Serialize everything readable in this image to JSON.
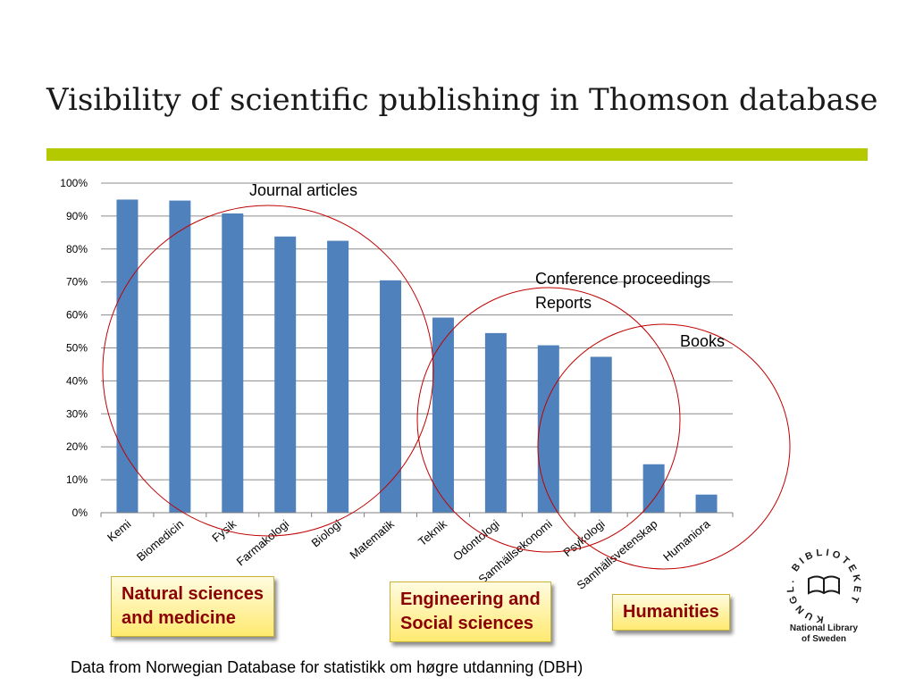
{
  "slide": {
    "title": "Visibility of scientific publishing in Thomson database",
    "accent_color": "#b5c900",
    "footer": "Data from Norwegian Database for statistikk om høgre utdanning (DBH)"
  },
  "chart_data": {
    "type": "bar",
    "categories": [
      "Kemi",
      "Biomedicin",
      "Fysik",
      "Farmakologi",
      "Biologi",
      "Matematik",
      "Teknik",
      "Odontologi",
      "Samhällsekonomi",
      "Psykologi",
      "Samhällsvetenskap",
      "Humaniora"
    ],
    "values": [
      95,
      94.7,
      90.8,
      83.8,
      82.5,
      70.5,
      59.2,
      54.5,
      50.8,
      47.3,
      14.7,
      5.5
    ],
    "ylim": [
      0,
      100
    ],
    "yticks": [
      "0%",
      "10%",
      "20%",
      "30%",
      "40%",
      "50%",
      "60%",
      "70%",
      "80%",
      "90%",
      "100%"
    ],
    "grid": true,
    "bar_color": "#4f81bd",
    "xlabel": "",
    "ylabel": ""
  },
  "annotations": {
    "journal": "Journal articles",
    "conference": "Conference proceedings",
    "reports": "Reports",
    "books": "Books",
    "circle_color": "#c00000"
  },
  "callouts": {
    "natural": [
      "Natural sciences",
      "and medicine"
    ],
    "engineering": [
      "Engineering and",
      "Social sciences"
    ],
    "humanities": [
      "Humanities"
    ],
    "text_color": "#8b0000"
  },
  "logo": {
    "ring_text": "KUNGL. BIBLIOTEKET",
    "name_line1": "National Library",
    "name_line2": "of Sweden"
  }
}
